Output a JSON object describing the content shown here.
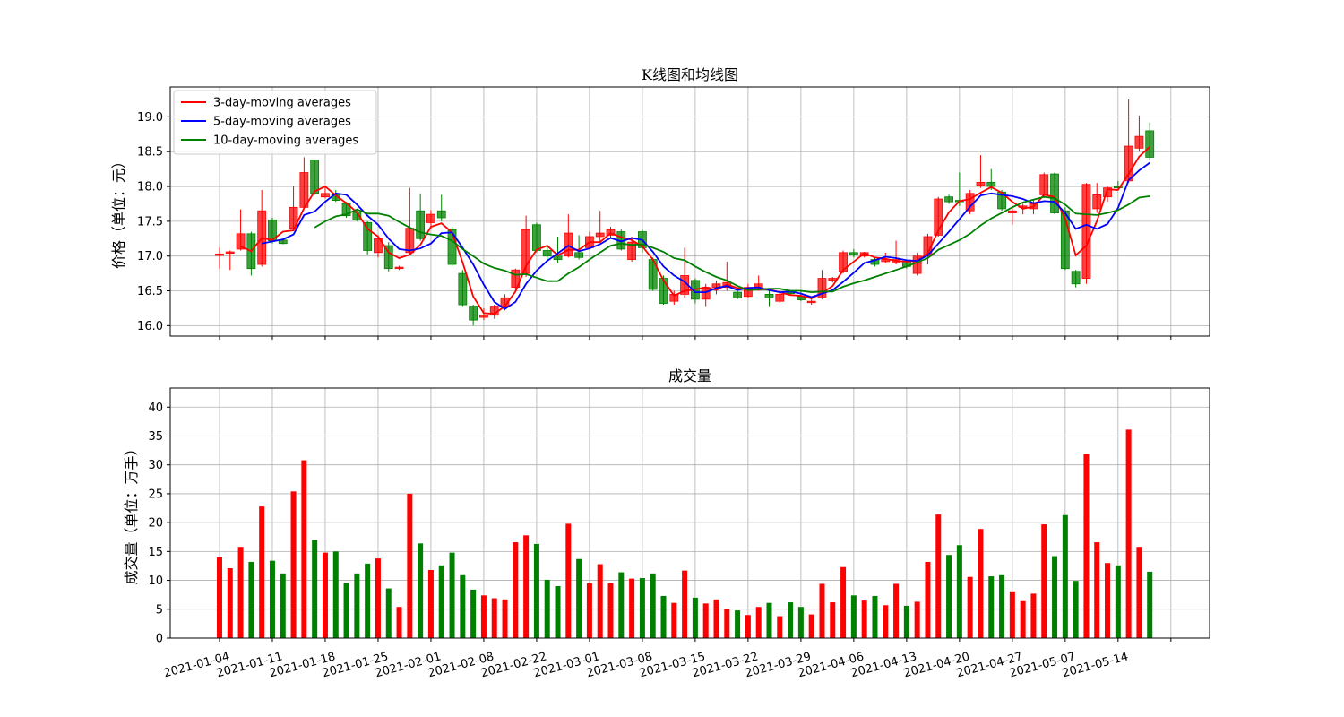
{
  "chart_data": [
    {
      "type": "candlestick",
      "title": "K线图和均线图",
      "ylabel": "价格（单位：元）",
      "open": [
        17.01,
        17.04,
        17.1,
        17.32,
        16.88,
        17.52,
        17.23,
        17.4,
        17.7,
        18.38,
        17.85,
        17.88,
        17.75,
        17.62,
        17.48,
        17.05,
        17.15,
        16.82,
        17.05,
        17.65,
        17.48,
        17.65,
        17.38,
        16.75,
        16.28,
        16.12,
        16.15,
        16.28,
        16.55,
        16.75,
        17.45,
        17.08,
        17.0,
        17.0,
        17.05,
        17.12,
        17.28,
        17.3,
        17.35,
        16.95,
        17.35,
        16.95,
        16.68,
        16.35,
        16.45,
        16.65,
        16.38,
        16.55,
        16.55,
        16.48,
        16.42,
        16.52,
        16.45,
        16.35,
        16.48,
        16.42,
        16.33,
        16.4,
        16.65,
        16.78,
        17.05,
        17.0,
        16.95,
        16.92,
        16.9,
        16.92,
        16.75,
        17.0,
        17.3,
        17.85,
        17.8,
        17.65,
        18.02,
        18.06,
        17.92,
        17.62,
        17.7,
        17.68,
        17.88,
        18.18,
        17.65,
        16.78,
        16.68,
        17.68,
        17.85,
        18.0,
        18.08,
        18.55,
        18.8
      ],
      "close": [
        17.03,
        17.06,
        17.32,
        16.82,
        17.65,
        17.22,
        17.18,
        17.7,
        18.2,
        17.9,
        17.9,
        17.8,
        17.58,
        17.52,
        17.08,
        17.25,
        16.82,
        16.84,
        17.4,
        17.25,
        17.6,
        17.55,
        16.88,
        16.3,
        16.08,
        16.15,
        16.28,
        16.4,
        16.8,
        17.38,
        17.08,
        17.0,
        16.95,
        17.33,
        16.98,
        17.28,
        17.33,
        17.38,
        17.1,
        17.2,
        17.12,
        16.52,
        16.32,
        16.45,
        16.72,
        16.38,
        16.55,
        16.6,
        16.62,
        16.4,
        16.55,
        16.6,
        16.4,
        16.45,
        16.46,
        16.37,
        16.35,
        16.68,
        16.68,
        17.05,
        17.02,
        17.05,
        16.88,
        16.95,
        16.95,
        16.85,
        17.0,
        17.28,
        17.82,
        17.78,
        17.78,
        17.9,
        18.06,
        18.0,
        17.68,
        17.65,
        17.72,
        17.75,
        18.17,
        17.62,
        16.82,
        16.6,
        18.03,
        17.88,
        17.98,
        17.98,
        18.58,
        18.72,
        18.42
      ],
      "high": [
        17.12,
        17.08,
        17.67,
        17.35,
        17.95,
        17.55,
        17.25,
        18.0,
        18.42,
        18.38,
        18.0,
        17.95,
        17.78,
        17.68,
        17.5,
        17.3,
        17.2,
        16.86,
        17.98,
        17.9,
        17.66,
        17.88,
        17.42,
        16.8,
        16.3,
        16.25,
        16.3,
        16.45,
        16.82,
        17.58,
        17.48,
        17.15,
        17.28,
        17.6,
        17.3,
        17.35,
        17.65,
        17.42,
        17.38,
        17.28,
        17.38,
        16.98,
        16.72,
        16.5,
        17.12,
        16.68,
        16.6,
        16.65,
        16.92,
        16.5,
        16.6,
        16.72,
        16.5,
        16.48,
        16.5,
        16.5,
        16.4,
        16.8,
        16.7,
        17.08,
        17.1,
        17.06,
        16.98,
        17.05,
        17.22,
        16.95,
        17.05,
        17.32,
        17.85,
        17.88,
        18.2,
        17.95,
        18.45,
        18.25,
        17.95,
        17.72,
        17.75,
        17.8,
        18.2,
        18.2,
        17.7,
        16.8,
        18.05,
        18.05,
        18.0,
        18.08,
        19.25,
        19.02,
        18.92
      ],
      "low": [
        16.82,
        16.8,
        17.08,
        16.72,
        16.85,
        17.18,
        17.17,
        17.38,
        17.68,
        17.88,
        17.83,
        17.78,
        17.55,
        17.5,
        17.02,
        16.98,
        16.78,
        16.8,
        17.02,
        17.22,
        17.38,
        17.5,
        16.85,
        16.28,
        16.0,
        16.08,
        16.1,
        16.22,
        16.5,
        16.7,
        17.05,
        16.95,
        16.9,
        16.98,
        16.95,
        17.1,
        17.2,
        17.25,
        17.08,
        16.92,
        17.05,
        16.5,
        16.3,
        16.3,
        16.4,
        16.32,
        16.28,
        16.45,
        16.5,
        16.38,
        16.4,
        16.5,
        16.28,
        16.33,
        16.44,
        16.35,
        16.3,
        16.38,
        16.62,
        16.75,
        16.98,
        16.98,
        16.85,
        16.9,
        16.88,
        16.82,
        16.72,
        16.88,
        17.28,
        17.75,
        17.72,
        17.6,
        17.98,
        17.95,
        17.65,
        17.45,
        17.6,
        17.6,
        17.85,
        17.6,
        16.8,
        16.55,
        16.6,
        17.62,
        17.78,
        17.95,
        18.05,
        18.5,
        18.38
      ],
      "up_color": "#ff0000",
      "down_color": "#008000",
      "series": [
        {
          "name": "3-day-moving averages",
          "color": "#ff0000",
          "values": [
            null,
            null,
            17.14,
            17.07,
            17.26,
            17.23,
            17.35,
            17.37,
            17.69,
            17.93,
            18.0,
            17.87,
            17.76,
            17.63,
            17.39,
            17.28,
            17.05,
            16.97,
            17.02,
            17.16,
            17.42,
            17.47,
            17.34,
            16.91,
            16.42,
            16.18,
            16.17,
            16.28,
            16.49,
            16.86,
            17.09,
            17.15,
            17.01,
            17.09,
            17.09,
            17.2,
            17.2,
            17.33,
            17.27,
            17.23,
            17.14,
            16.95,
            16.65,
            16.43,
            16.5,
            16.52,
            16.55,
            16.51,
            16.59,
            16.54,
            16.52,
            16.52,
            16.52,
            16.48,
            16.44,
            16.43,
            16.39,
            16.47,
            16.57,
            16.8,
            16.92,
            17.04,
            16.98,
            16.96,
            16.93,
            16.92,
            16.93,
            17.04,
            17.37,
            17.63,
            17.79,
            17.82,
            17.91,
            17.99,
            17.91,
            17.78,
            17.68,
            17.71,
            17.88,
            17.85,
            17.54,
            17.01,
            17.15,
            17.5,
            17.96,
            17.95,
            18.18,
            18.43,
            18.57
          ]
        },
        {
          "name": "5-day-moving averages",
          "color": "#0000ff",
          "values": [
            null,
            null,
            null,
            null,
            17.18,
            17.21,
            17.24,
            17.31,
            17.59,
            17.64,
            17.78,
            17.9,
            17.88,
            17.74,
            17.58,
            17.45,
            17.25,
            17.1,
            17.08,
            17.11,
            17.18,
            17.33,
            17.34,
            17.12,
            16.88,
            16.59,
            16.34,
            16.24,
            16.34,
            16.6,
            16.79,
            16.93,
            17.04,
            17.15,
            17.07,
            17.11,
            17.17,
            17.26,
            17.21,
            17.26,
            17.23,
            17.06,
            16.85,
            16.72,
            16.63,
            16.48,
            16.48,
            16.54,
            16.57,
            16.51,
            16.54,
            16.55,
            16.51,
            16.48,
            16.49,
            16.46,
            16.41,
            16.46,
            16.51,
            16.63,
            16.76,
            16.9,
            16.94,
            16.99,
            16.97,
            16.94,
            16.93,
            17.01,
            17.18,
            17.35,
            17.53,
            17.71,
            17.87,
            17.9,
            17.88,
            17.86,
            17.82,
            17.76,
            17.79,
            17.78,
            17.62,
            17.39,
            17.45,
            17.39,
            17.46,
            17.69,
            18.09,
            18.23,
            18.34
          ]
        },
        {
          "name": "10-day-moving averages",
          "color": "#008000",
          "values": [
            null,
            null,
            null,
            null,
            null,
            null,
            null,
            null,
            null,
            17.41,
            17.5,
            17.57,
            17.6,
            17.67,
            17.61,
            17.61,
            17.58,
            17.49,
            17.41,
            17.34,
            17.31,
            17.29,
            17.22,
            17.1,
            17.0,
            16.89,
            16.83,
            16.79,
            16.73,
            16.74,
            16.69,
            16.64,
            16.64,
            16.75,
            16.84,
            16.95,
            17.05,
            17.15,
            17.18,
            17.16,
            17.17,
            17.12,
            17.06,
            16.97,
            16.94,
            16.85,
            16.77,
            16.7,
            16.65,
            16.57,
            16.51,
            16.52,
            16.53,
            16.53,
            16.5,
            16.5,
            16.48,
            16.49,
            16.49,
            16.56,
            16.61,
            16.65,
            16.7,
            16.75,
            16.8,
            16.85,
            16.91,
            16.97,
            17.09,
            17.16,
            17.23,
            17.32,
            17.44,
            17.54,
            17.62,
            17.7,
            17.77,
            17.81,
            17.85,
            17.83,
            17.74,
            17.61,
            17.6,
            17.59,
            17.62,
            17.66,
            17.74,
            17.84,
            17.86
          ]
        }
      ],
      "xlim": [
        -4.66,
        93.66
      ],
      "xticks": [
        0,
        5,
        10,
        15,
        20,
        25,
        30,
        35,
        40,
        45,
        50,
        55,
        60,
        65,
        70,
        75,
        80,
        85,
        90
      ],
      "ylim": [
        15.85,
        19.43
      ],
      "yticks": [
        {
          "value": 16,
          "label": "16.0"
        },
        16.5,
        {
          "value": 17,
          "label": "17.0"
        },
        17.5,
        {
          "value": 18,
          "label": "18.0"
        },
        18.5,
        {
          "value": 19,
          "label": "19.0"
        }
      ],
      "grid": true,
      "legend": "upper left"
    },
    {
      "type": "bar",
      "title": "成交量",
      "ylabel": "成交量（单位：万手）",
      "categories": [
        "2021-01-04",
        null,
        null,
        null,
        null,
        "2021-01-11",
        null,
        null,
        null,
        null,
        "2021-01-18",
        null,
        null,
        null,
        null,
        "2021-01-25",
        null,
        null,
        null,
        null,
        "2021-02-01",
        null,
        null,
        null,
        null,
        "2021-02-08",
        null,
        null,
        null,
        null,
        "2021-02-22",
        null,
        null,
        null,
        null,
        "2021-03-01",
        null,
        null,
        null,
        null,
        "2021-03-08",
        null,
        null,
        null,
        null,
        "2021-03-15",
        null,
        null,
        null,
        null,
        "2021-03-22",
        null,
        null,
        null,
        null,
        "2021-03-29",
        null,
        null,
        null,
        null,
        "2021-04-06",
        null,
        null,
        null,
        null,
        "2021-04-13",
        null,
        null,
        null,
        null,
        "2021-04-20",
        null,
        null,
        null,
        null,
        "2021-04-27",
        null,
        null,
        null,
        null,
        "2021-05-07",
        null,
        null,
        null,
        null,
        "2021-05-14",
        null,
        null,
        null
      ],
      "values": [
        14,
        12.1,
        15.8,
        13.2,
        22.8,
        13.4,
        11.2,
        25.4,
        30.8,
        17,
        14.8,
        15,
        9.5,
        11.2,
        12.9,
        13.8,
        8.6,
        5.4,
        25,
        16.4,
        11.8,
        12.6,
        14.8,
        10.9,
        8.4,
        7.4,
        6.9,
        6.7,
        16.6,
        17.8,
        16.3,
        10.1,
        9,
        19.8,
        13.7,
        9.5,
        12.8,
        9.5,
        11.4,
        10.3,
        10.4,
        11.2,
        7.3,
        6.1,
        11.7,
        7,
        6,
        6.7,
        5,
        4.8,
        4,
        5.4,
        6.1,
        3.8,
        6.2,
        5.4,
        4.1,
        9.4,
        6.2,
        12.3,
        7.4,
        6.5,
        7.3,
        5.7,
        9.4,
        5.6,
        6.3,
        13.2,
        21.4,
        14.4,
        16.1,
        10.6,
        18.9,
        10.7,
        10.9,
        8.1,
        6.4,
        7.7,
        19.7,
        14.2,
        21.3,
        9.9,
        31.9,
        16.6,
        13,
        12.6,
        36.1,
        15.8,
        11.5
      ],
      "up_color": "#ff0000",
      "down_color": "#008000",
      "xlim": [
        -4.66,
        93.66
      ],
      "xticks": [
        0,
        5,
        10,
        15,
        20,
        25,
        30,
        35,
        40,
        45,
        50,
        55,
        60,
        65,
        70,
        75,
        80,
        85,
        90
      ],
      "ylim": [
        0,
        43.3
      ],
      "yticks": [
        0,
        5,
        10,
        15,
        20,
        25,
        30,
        35,
        40
      ],
      "grid": true
    }
  ]
}
